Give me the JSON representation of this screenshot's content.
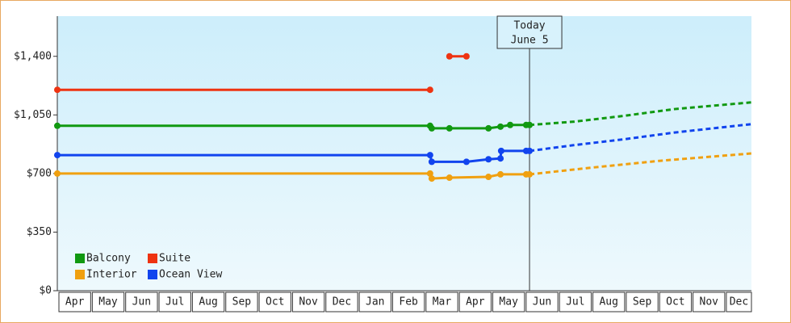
{
  "chart_data": {
    "type": "line",
    "categories": [
      "Apr",
      "May",
      "Jun",
      "Jul",
      "Aug",
      "Sep",
      "Oct",
      "Nov",
      "Dec",
      "Jan",
      "Feb",
      "Mar",
      "Apr",
      "May",
      "Jun",
      "Jul",
      "Aug",
      "Sep",
      "Oct",
      "Nov",
      "Dec"
    ],
    "xlim": [
      0,
      20.8
    ],
    "ylim": [
      0,
      1640
    ],
    "yticks": [
      {
        "value": 0,
        "label": "$0"
      },
      {
        "value": 350,
        "label": "$350"
      },
      {
        "value": 700,
        "label": "$700"
      },
      {
        "value": 1050,
        "label": "$1,050"
      },
      {
        "value": 1400,
        "label": "$1,400"
      }
    ],
    "annotation": {
      "lines": [
        "Today",
        "June 5"
      ],
      "x": 14.15
    },
    "legend": "lower left",
    "series": [
      {
        "name": "Balcony",
        "color": "#119911",
        "x": [
          0,
          11.17,
          11.22,
          11.75,
          12.92,
          13.28,
          13.57,
          14.05,
          14.15
        ],
        "values": [
          985,
          985,
          970,
          970,
          970,
          980,
          990,
          990,
          990
        ],
        "forecast_x": [
          14.15,
          15.5,
          17,
          18.5,
          20.8
        ],
        "forecast": [
          990,
          1010,
          1045,
          1085,
          1125
        ]
      },
      {
        "name": "Suite",
        "color": "#ee3311",
        "x": [
          0,
          11.17,
          11.5,
          11.75,
          12.26
        ],
        "values": [
          1200,
          1200,
          null,
          1400,
          1400
        ],
        "forecast_x": [],
        "forecast": []
      },
      {
        "name": "Interior",
        "color": "#f0a010",
        "x": [
          0,
          11.17,
          11.22,
          11.75,
          12.92,
          13.28,
          14.05,
          14.15
        ],
        "values": [
          700,
          700,
          670,
          675,
          680,
          695,
          695,
          695
        ],
        "forecast_x": [
          14.15,
          16,
          18,
          20.8
        ],
        "forecast": [
          695,
          735,
          775,
          820
        ]
      },
      {
        "name": "Ocean View",
        "color": "#1144ee",
        "x": [
          0,
          11.17,
          11.22,
          12.26,
          12.92,
          13.28,
          13.3,
          14.05,
          14.15
        ],
        "values": [
          810,
          810,
          770,
          770,
          785,
          790,
          835,
          835,
          835
        ],
        "forecast_x": [
          14.15,
          15.5,
          17,
          18.5,
          20.8
        ],
        "forecast": [
          835,
          870,
          905,
          945,
          995
        ]
      }
    ]
  }
}
